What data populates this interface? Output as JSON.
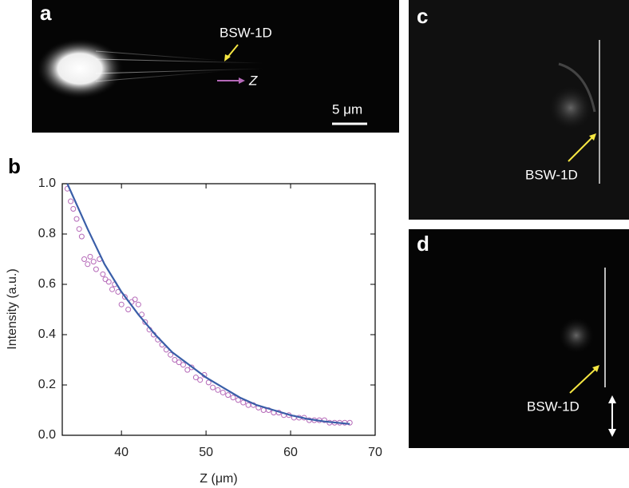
{
  "panels": {
    "a": {
      "label": "a",
      "annotation": "BSW-1D",
      "direction": "Z",
      "scale_bar": "5 μm"
    },
    "b": {
      "label": "b"
    },
    "c": {
      "label": "c",
      "annotation": "BSW-1D"
    },
    "d": {
      "label": "d",
      "annotation": "BSW-1D"
    }
  },
  "chart_data": {
    "type": "scatter",
    "xlabel": "Z (μm)",
    "ylabel": "Intensity (a.u.)",
    "xlim": [
      33,
      70
    ],
    "xticks": [
      40,
      50,
      60,
      70
    ],
    "ylim": [
      0,
      1
    ],
    "yticks": [
      {
        "value": 0,
        "label": "0.0"
      },
      0.2,
      0.4,
      0.6,
      0.8,
      {
        "value": 1,
        "label": "1.0"
      }
    ],
    "series": [
      {
        "style": "markers",
        "color": "#b569b8",
        "x": [
          33.6,
          34.0,
          34.3,
          34.7,
          35.0,
          35.3,
          35.6,
          36.0,
          36.3,
          36.7,
          37.0,
          37.4,
          37.8,
          38.1,
          38.5,
          38.9,
          39.2,
          39.6,
          40.0,
          40.4,
          40.8,
          41.2,
          41.6,
          42.0,
          42.4,
          42.8,
          43.3,
          43.8,
          44.3,
          44.8,
          45.3,
          45.8,
          46.3,
          46.8,
          47.3,
          47.8,
          48.3,
          48.8,
          49.3,
          49.8,
          50.3,
          50.8,
          51.4,
          52.0,
          52.6,
          53.2,
          53.8,
          54.4,
          55.0,
          55.6,
          56.2,
          56.8,
          57.4,
          58.0,
          58.6,
          59.2,
          59.8,
          60.4,
          61.0,
          61.6,
          62.2,
          62.8,
          63.4,
          64.0,
          64.6,
          65.2,
          65.8,
          66.4,
          67.0
        ],
        "values": [
          0.98,
          0.93,
          0.9,
          0.86,
          0.82,
          0.79,
          0.7,
          0.68,
          0.71,
          0.69,
          0.66,
          0.7,
          0.64,
          0.62,
          0.61,
          0.58,
          0.6,
          0.57,
          0.52,
          0.55,
          0.5,
          0.53,
          0.54,
          0.52,
          0.48,
          0.45,
          0.42,
          0.4,
          0.38,
          0.36,
          0.34,
          0.32,
          0.3,
          0.29,
          0.28,
          0.26,
          0.27,
          0.23,
          0.22,
          0.24,
          0.21,
          0.19,
          0.18,
          0.17,
          0.16,
          0.15,
          0.14,
          0.13,
          0.12,
          0.12,
          0.11,
          0.1,
          0.1,
          0.09,
          0.09,
          0.08,
          0.08,
          0.07,
          0.07,
          0.07,
          0.06,
          0.06,
          0.06,
          0.06,
          0.05,
          0.05,
          0.05,
          0.05,
          0.05
        ]
      },
      {
        "style": "line",
        "color": "#3a5ea8",
        "x": [
          33.6,
          36,
          38,
          40,
          42,
          44,
          46,
          48,
          50,
          52,
          54,
          56,
          58,
          60,
          62,
          64,
          67
        ],
        "values": [
          1.0,
          0.82,
          0.68,
          0.57,
          0.48,
          0.4,
          0.33,
          0.28,
          0.23,
          0.19,
          0.15,
          0.12,
          0.1,
          0.08,
          0.065,
          0.055,
          0.045
        ]
      }
    ]
  }
}
